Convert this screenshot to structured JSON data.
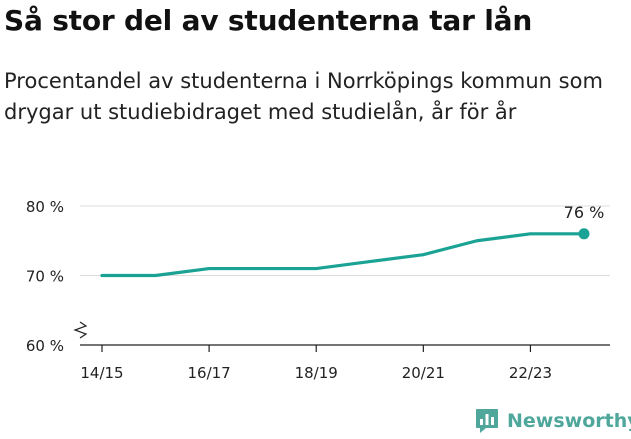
{
  "header": {
    "title": "Så stor del av studenterna tar lån",
    "subtitle": "Procentandel av studenterna i Norrköpings kommun som drygar ut studiebidraget med studielån, år för år"
  },
  "brand": {
    "name": "Newsworthy",
    "icon": "bar-chart-speech-bubble-icon",
    "color": "#4fa79b"
  },
  "chart_data": {
    "type": "line",
    "title": "",
    "xlabel": "",
    "ylabel": "",
    "x": [
      "14/15",
      "15/16",
      "16/17",
      "17/18",
      "18/19",
      "19/20",
      "20/21",
      "21/22",
      "22/23",
      "23/24"
    ],
    "x_tick_labels": [
      "14/15",
      "16/17",
      "18/19",
      "20/21",
      "22/23"
    ],
    "y_ticks": [
      60,
      70,
      80
    ],
    "y_tick_labels": [
      "60 %",
      "70 %",
      "80 %"
    ],
    "ylim": [
      60,
      80
    ],
    "y_axis_break": true,
    "grid": "horizontal",
    "series": [
      {
        "values": [
          70,
          70,
          71,
          71,
          71,
          72,
          73,
          75,
          76,
          76
        ],
        "color": "#1aa394"
      }
    ],
    "annotations": [
      {
        "label": "76 %",
        "x": "23/24",
        "y": 76
      }
    ]
  }
}
